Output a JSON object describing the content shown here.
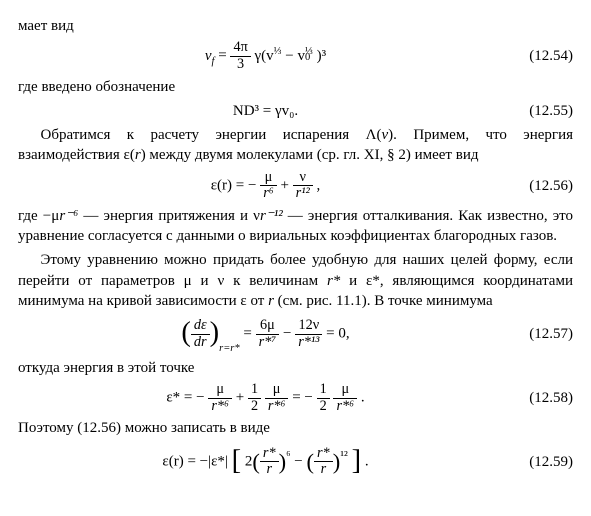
{
  "p1": "мает вид",
  "eq1254": {
    "lhs": "v",
    "lhs_sub": "f",
    "rhs_a": "4π",
    "rhs_b": "3",
    "rhs_c": "γ(v",
    "rhs_d": "⅓",
    "rhs_e": " − v",
    "rhs_f": "⅓",
    "rhs_g": ")³",
    "sub0": "0",
    "num": "(12.54)"
  },
  "p2": "где введено обозначение",
  "eq1255": {
    "text": "ND³ = γv₀.",
    "num": "(12.55)"
  },
  "p3a": "Обратимся к расчету энергии испарения Λ(",
  "p3b": "v",
  "p3c": "). Примем, что энергия взаимодействия ε(",
  "p3d": "r",
  "p3e": ") между двумя молекулами (ср. гл. XI, § 2) имеет вид",
  "eq1256": {
    "pre": "ε(r) = − ",
    "f1n": "μ",
    "f1d": "r⁶",
    "mid": " + ",
    "f2n": "ν",
    "f2d": "r¹²",
    "post": " ,",
    "num": "(12.56)"
  },
  "p4a": "где −μ",
  "p4b": "r⁻⁶",
  "p4c": " — энергия притяжения и ν",
  "p4d": "r⁻¹²",
  "p4e": " — энергия отталкивания. Как известно, это уравнение согласуется с данными о вириальных коэффициентах благородных газов.",
  "p5a": "Этому уравнению можно придать более удобную для наших целей форму, если перейти от параметров μ и ν к величинам ",
  "p5b": "r*",
  "p5c": " и ε*, являющимся координатами минимума на кривой зависимости ε от ",
  "p5d": "r",
  "p5e": " (см. рис. 11.1). В точке минимума",
  "eq1257": {
    "ln": "dε",
    "ld": "dr",
    "sub": "r=r*",
    "eq": " = ",
    "f1n": "6μ",
    "f1d": "r*⁷",
    "m": " − ",
    "f2n": "12ν",
    "f2d": "r*¹³",
    "end": " = 0,",
    "num": "(12.57)"
  },
  "p6": "откуда энергия в этой точке",
  "eq1258": {
    "pre": "ε* = − ",
    "f1n": "μ",
    "f1d": "r*⁶",
    "m1": " + ",
    "f2an": "1",
    "f2ad": "2",
    "f2bn": "μ",
    "f2bd": "r*⁶",
    "m2": " = − ",
    "f3an": "1",
    "f3ad": "2",
    "f3bn": "μ",
    "f3bd": "r*⁶",
    "end": " .",
    "num": "(12.58)"
  },
  "p7": "Поэтому (12.56) можно записать в виде",
  "eq1259": {
    "pre": "ε(r) = −|ε*| ",
    "two": "2",
    "f1n": "r*",
    "f1d": "r",
    "p1": "⁶",
    "m": " − ",
    "f2n": "r*",
    "f2d": "r",
    "p2": "¹²",
    "end": " .",
    "num": "(12.59)"
  }
}
